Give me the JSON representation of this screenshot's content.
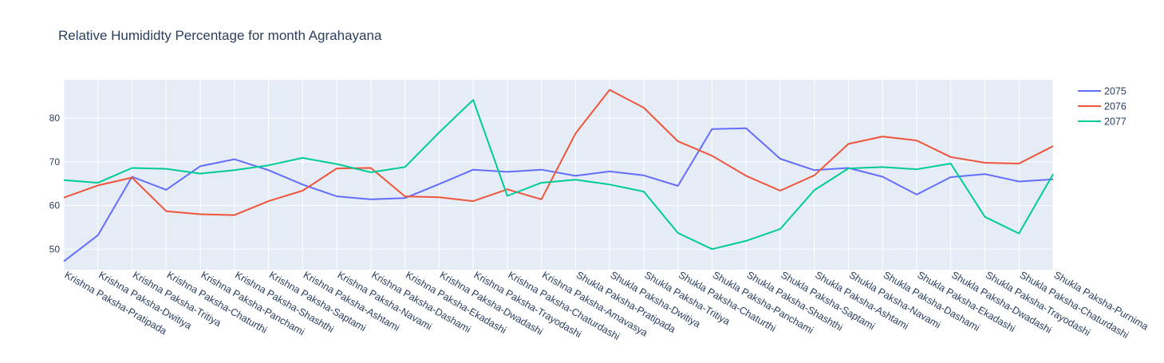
{
  "chart_data": {
    "type": "line",
    "title": "Relative Humididty Percentage for month Agrahayana",
    "xlabel": "",
    "ylabel": "",
    "ylim": [
      45.3,
      88.8
    ],
    "yticks": [
      50,
      60,
      70,
      80
    ],
    "grid": true,
    "legend_position": "top-right",
    "categories": [
      "Krishna Paksha-Pratipada",
      "Krishna Paksha-Dwitiya",
      "Krishna Paksha-Tritiya",
      "Krishna Paksha-Chaturthi",
      "Krishna Paksha-Panchami",
      "Krishna Paksha-Shashthi",
      "Krishna Paksha-Saptami",
      "Krishna Paksha-Ashtami",
      "Krishna Paksha-Navami",
      "Krishna Paksha-Dashami",
      "Krishna Paksha-Ekadashi",
      "Krishna Paksha-Dwadashi",
      "Krishna Paksha-Trayodashi",
      "Krishna Paksha-Chaturdashi",
      "Krishna Paksha-Amavasya",
      "Shukla Paksha-Pratipada",
      "Shukla Paksha-Dwitiya",
      "Shukla Paksha-Tritiya",
      "Shukla Paksha-Chaturthi",
      "Shukla Paksha-Panchami",
      "Shukla Paksha-Shashthi",
      "Shukla Paksha-Saptami",
      "Shukla Paksha-Ashtami",
      "Shukla Paksha-Navami",
      "Shukla Paksha-Dashami",
      "Shukla Paksha-Ekadashi",
      "Shukla Paksha-Dwadashi",
      "Shukla Paksha-Trayodashi",
      "Shukla Paksha-Chaturdashi",
      "Shukla Paksha-Purnima"
    ],
    "series": [
      {
        "name": "2075",
        "color": "#636efa",
        "values": [
          47.2,
          53.2,
          66.6,
          63.6,
          69.0,
          70.6,
          68.1,
          64.8,
          62.1,
          61.4,
          61.7,
          64.9,
          68.2,
          67.7,
          68.2,
          66.8,
          67.8,
          66.9,
          64.5,
          77.5,
          77.7,
          70.7,
          68.1,
          68.6,
          66.6,
          62.5,
          66.5,
          67.2,
          65.5,
          66.0
        ]
      },
      {
        "name": "2076",
        "color": "#ef553b",
        "values": [
          61.8,
          64.6,
          66.4,
          58.7,
          58.0,
          57.8,
          61.0,
          63.4,
          68.5,
          68.6,
          62.1,
          61.9,
          61.0,
          63.7,
          61.4,
          76.5,
          86.5,
          82.4,
          74.7,
          71.4,
          66.8,
          63.4,
          66.9,
          74.1,
          75.8,
          74.9,
          71.1,
          69.8,
          69.6,
          73.6
        ]
      },
      {
        "name": "2077",
        "color": "#00cc96",
        "values": [
          65.8,
          65.2,
          68.6,
          68.4,
          67.3,
          68.1,
          69.2,
          70.9,
          69.5,
          67.6,
          68.8,
          76.7,
          84.2,
          62.2,
          65.2,
          65.9,
          64.8,
          63.2,
          53.7,
          50.0,
          51.9,
          54.6,
          63.5,
          68.5,
          68.8,
          68.3,
          69.6,
          57.4,
          53.6,
          67.2
        ]
      }
    ]
  }
}
